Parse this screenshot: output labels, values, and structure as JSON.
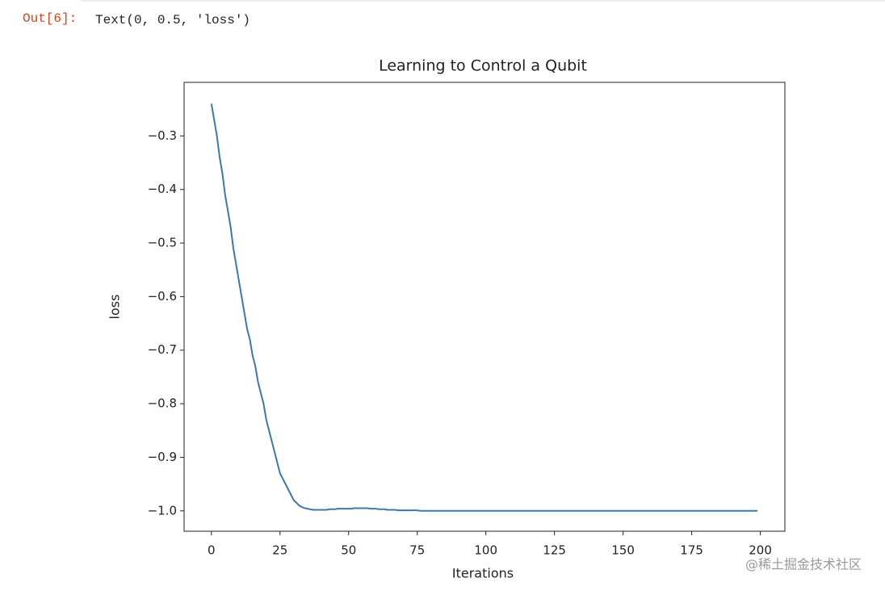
{
  "prompt": "Out[6]:",
  "output_text": "Text(0, 0.5, 'loss')",
  "watermark": "@稀土掘金技术社区",
  "chart_data": {
    "type": "line",
    "title": "Learning to Control a Qubit",
    "x_label": "Iterations",
    "y_label": "loss",
    "series": [
      {
        "name": "loss",
        "color": "#3a78b0",
        "values": [
          -0.24,
          -0.27,
          -0.3,
          -0.34,
          -0.37,
          -0.41,
          -0.44,
          -0.47,
          -0.51,
          -0.54,
          -0.57,
          -0.6,
          -0.63,
          -0.66,
          -0.68,
          -0.71,
          -0.73,
          -0.76,
          -0.78,
          -0.8,
          -0.83,
          -0.85,
          -0.87,
          -0.89,
          -0.91,
          -0.93,
          -0.94,
          -0.95,
          -0.96,
          -0.97,
          -0.98,
          -0.985,
          -0.99,
          -0.993,
          -0.995,
          -0.996,
          -0.997,
          -0.998,
          -0.998,
          -0.998,
          -0.998,
          -0.998,
          -0.998,
          -0.997,
          -0.997,
          -0.997,
          -0.996,
          -0.996,
          -0.996,
          -0.996,
          -0.996,
          -0.996,
          -0.995,
          -0.995,
          -0.995,
          -0.995,
          -0.995,
          -0.995,
          -0.996,
          -0.996,
          -0.996,
          -0.997,
          -0.997,
          -0.997,
          -0.998,
          -0.998,
          -0.998,
          -0.998,
          -0.999,
          -0.999,
          -0.999,
          -0.999,
          -0.999,
          -0.999,
          -0.999,
          -0.999,
          -1,
          -1,
          -1,
          -1,
          -1,
          -1,
          -1,
          -1,
          -1,
          -1,
          -1,
          -1,
          -1,
          -1,
          -1,
          -1,
          -1,
          -1,
          -1,
          -1,
          -1,
          -1,
          -1,
          -1,
          -1,
          -1,
          -1,
          -1,
          -1,
          -1,
          -1,
          -1,
          -1,
          -1,
          -1,
          -1,
          -1,
          -1,
          -1,
          -1,
          -1,
          -1,
          -1,
          -1,
          -1,
          -1,
          -1,
          -1,
          -1,
          -1,
          -1,
          -1,
          -1,
          -1,
          -1,
          -1,
          -1,
          -1,
          -1,
          -1,
          -1,
          -1,
          -1,
          -1,
          -1,
          -1,
          -1,
          -1,
          -1,
          -1,
          -1,
          -1,
          -1,
          -1,
          -1,
          -1,
          -1,
          -1,
          -1,
          -1,
          -1,
          -1,
          -1,
          -1,
          -1,
          -1,
          -1,
          -1,
          -1,
          -1,
          -1,
          -1,
          -1,
          -1,
          -1,
          -1,
          -1,
          -1,
          -1,
          -1,
          -1,
          -1,
          -1,
          -1,
          -1,
          -1,
          -1,
          -1,
          -1,
          -1,
          -1,
          -1,
          -1,
          -1,
          -1,
          -1,
          -1,
          -1,
          -1,
          -1,
          -1,
          -1,
          -1,
          -1
        ]
      }
    ],
    "xlim": [
      -9.95,
      208.95
    ],
    "xticks": [
      0,
      25,
      50,
      75,
      100,
      125,
      150,
      175,
      200
    ],
    "ylim": [
      -1.038,
      -0.2
    ],
    "yticks": [
      {
        "value": -1.0,
        "label": "−1.0"
      },
      {
        "value": -0.9,
        "label": "−0.9"
      },
      {
        "value": -0.8,
        "label": "−0.8"
      },
      {
        "value": -0.7,
        "label": "−0.7"
      },
      {
        "value": -0.6,
        "label": "−0.6"
      },
      {
        "value": -0.5,
        "label": "−0.5"
      },
      {
        "value": -0.4,
        "label": "−0.4"
      },
      {
        "value": -0.3,
        "label": "−0.3"
      }
    ],
    "grid": false
  }
}
